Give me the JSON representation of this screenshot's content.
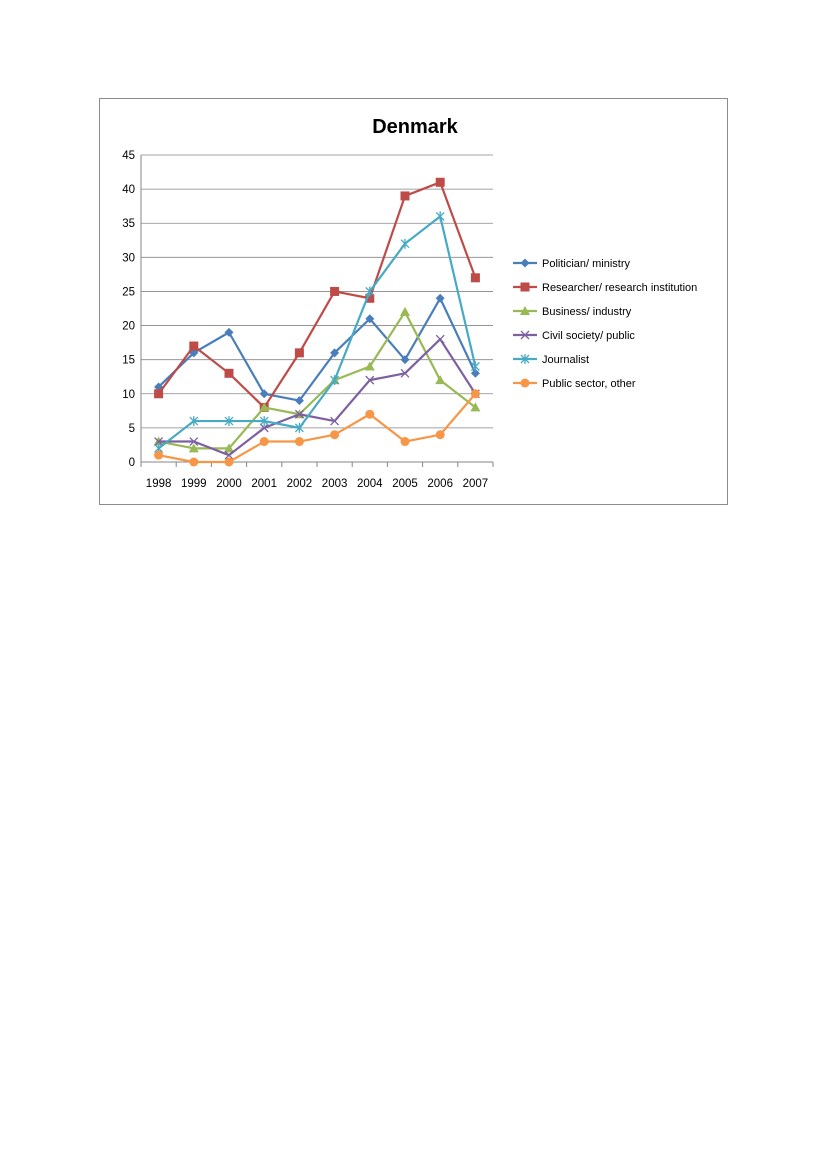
{
  "chart_data": {
    "type": "line",
    "title": "Denmark",
    "xlabel": "",
    "ylabel": "",
    "categories": [
      "1998",
      "1999",
      "2000",
      "2001",
      "2002",
      "2003",
      "2004",
      "2005",
      "2006",
      "2007"
    ],
    "ylim": [
      0,
      45
    ],
    "yticks": [
      "0",
      "5",
      "10",
      "15",
      "20",
      "25",
      "30",
      "35",
      "40",
      "45"
    ],
    "grid": "horizontal",
    "legend_position": "right",
    "series": [
      {
        "name": "Politician/ ministry",
        "color": "#4a7ebb",
        "marker": "diamond",
        "values": [
          11,
          16,
          19,
          10,
          9,
          16,
          21,
          15,
          24,
          13
        ]
      },
      {
        "name": "Researcher/ research institution",
        "color": "#be4b48",
        "marker": "square",
        "values": [
          10,
          17,
          13,
          8,
          16,
          25,
          24,
          39,
          41,
          27
        ]
      },
      {
        "name": "Business/ industry",
        "color": "#98b954",
        "marker": "triangle",
        "values": [
          3,
          2,
          2,
          8,
          7,
          12,
          14,
          22,
          12,
          8
        ]
      },
      {
        "name": "Civil society/ public",
        "color": "#7d60a0",
        "marker": "x",
        "values": [
          3,
          3,
          1,
          5,
          7,
          6,
          12,
          13,
          18,
          10
        ]
      },
      {
        "name": "Journalist",
        "color": "#46aac5",
        "marker": "star",
        "values": [
          2,
          6,
          6,
          6,
          5,
          12,
          25,
          32,
          36,
          14
        ]
      },
      {
        "name": "Public sector, other",
        "color": "#f79646",
        "marker": "circle",
        "values": [
          1,
          0,
          0,
          3,
          3,
          4,
          7,
          3,
          4,
          10
        ]
      }
    ]
  }
}
